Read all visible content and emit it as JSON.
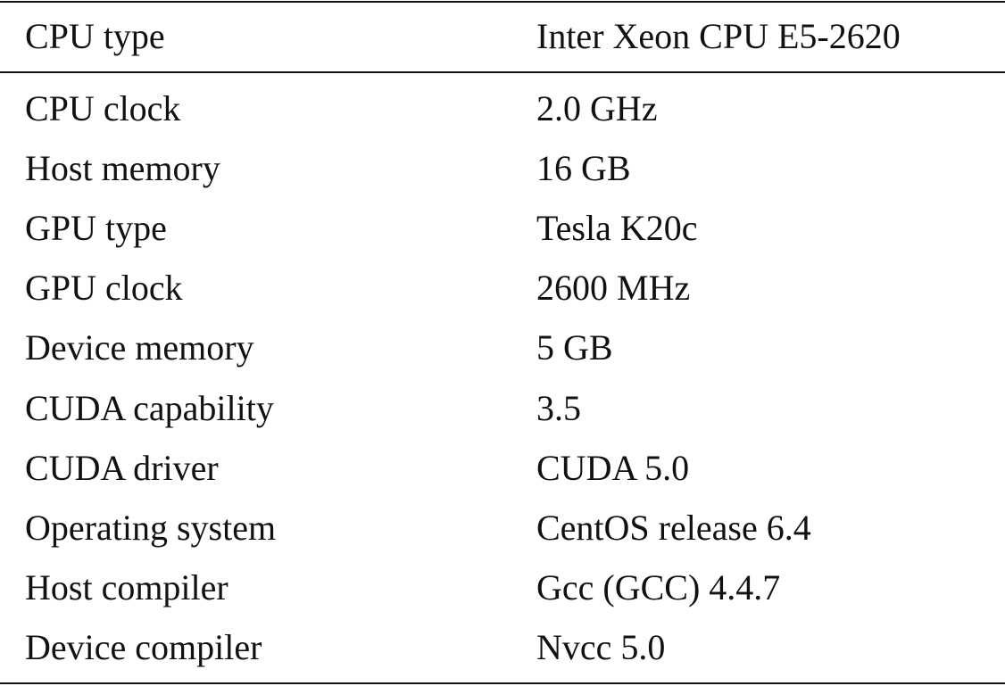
{
  "table": {
    "header": [
      "CPU type",
      "Inter Xeon CPU E5-2620"
    ],
    "rows": [
      [
        "CPU clock",
        "2.0 GHz"
      ],
      [
        "Host memory",
        "16 GB"
      ],
      [
        "GPU type",
        "Tesla K20c"
      ],
      [
        "GPU clock",
        "2600 MHz"
      ],
      [
        "Device memory",
        "5 GB"
      ],
      [
        "CUDA capability",
        "3.5"
      ],
      [
        "CUDA driver",
        "CUDA 5.0"
      ],
      [
        "Operating system",
        "CentOS release 6.4"
      ],
      [
        "Host compiler",
        "Gcc (GCC) 4.4.7"
      ],
      [
        "Device compiler",
        "Nvcc 5.0"
      ]
    ]
  }
}
